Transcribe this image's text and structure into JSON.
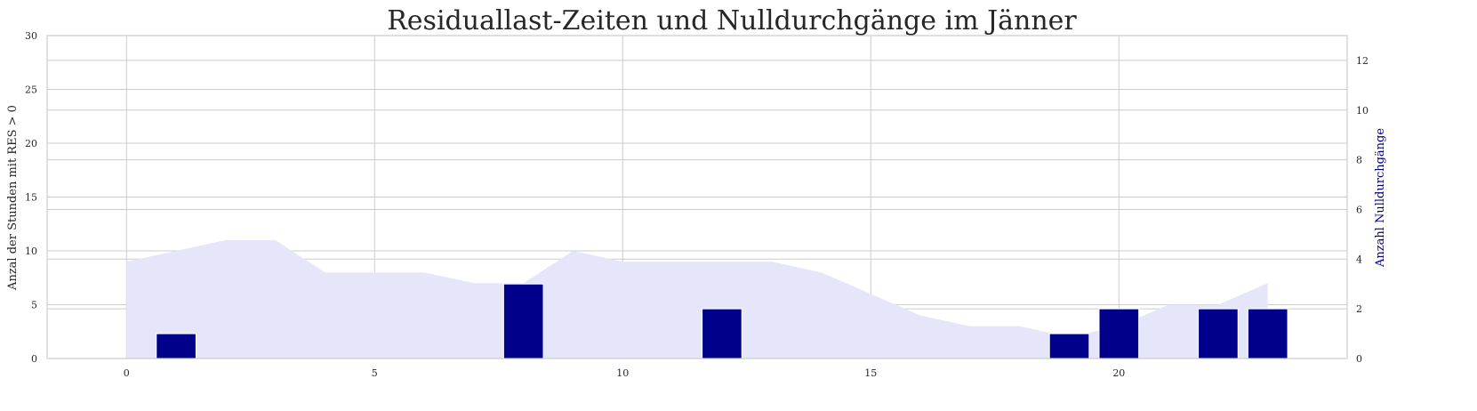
{
  "chart_data": {
    "type": "bar",
    "title": "Residuallast-Zeiten und Nulldurchgänge im Jänner",
    "xlabel": "",
    "ylabel_left": "Anzal der Stunden mit RES > 0",
    "ylabel_right": "Anzahl Nulldurchgänge",
    "xlim": [
      -1.6,
      24.6
    ],
    "ylim_left": [
      0,
      30
    ],
    "ylim_right": [
      0,
      13
    ],
    "x_ticks": [
      0,
      5,
      10,
      15,
      20
    ],
    "y_ticks_left": [
      0,
      5,
      10,
      15,
      20,
      25,
      30
    ],
    "y_ticks_right": [
      0,
      2,
      4,
      6,
      8,
      10,
      12
    ],
    "grid": true,
    "series": [
      {
        "kind": "area",
        "axis": "left",
        "color": "#e6e6fa",
        "x": [
          0,
          1,
          2,
          3,
          4,
          5,
          6,
          7,
          8,
          9,
          10,
          11,
          12,
          13,
          14,
          15,
          16,
          17,
          18,
          19,
          20,
          21,
          22,
          23
        ],
        "values": [
          9,
          10,
          11,
          11,
          8,
          8,
          8,
          7,
          7,
          10,
          9,
          9,
          9,
          9,
          8,
          6,
          4,
          3,
          3,
          2,
          3,
          5,
          5,
          7
        ]
      },
      {
        "kind": "bar",
        "axis": "right",
        "color": "#00008b",
        "x": [
          1,
          8,
          12,
          19,
          20,
          22,
          23
        ],
        "values": [
          1,
          3,
          2,
          1,
          2,
          2,
          2
        ]
      }
    ]
  }
}
